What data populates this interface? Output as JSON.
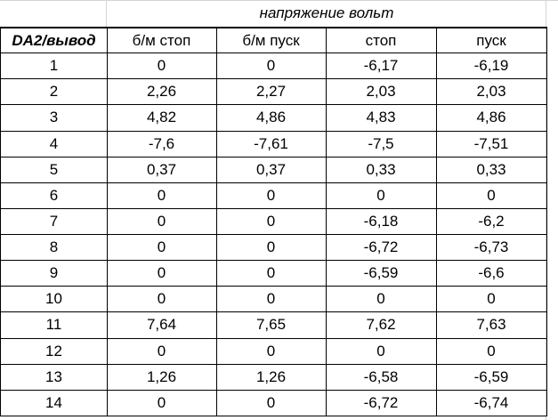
{
  "header": {
    "title": "напряжение вольт"
  },
  "table": {
    "columns": [
      "DA2/вывод",
      "б/м стоп",
      "б/м пуск",
      "стоп",
      "пуск"
    ],
    "rows": [
      [
        "1",
        "0",
        "0",
        "-6,17",
        "-6,19"
      ],
      [
        "2",
        "2,26",
        "2,27",
        "2,03",
        "2,03"
      ],
      [
        "3",
        "4,82",
        "4,86",
        "4,83",
        "4,86"
      ],
      [
        "4",
        "-7,6",
        "-7,61",
        "-7,5",
        "-7,51"
      ],
      [
        "5",
        "0,37",
        "0,37",
        "0,33",
        "0,33"
      ],
      [
        "6",
        "0",
        "0",
        "0",
        "0"
      ],
      [
        "7",
        "0",
        "0",
        "-6,18",
        "-6,2"
      ],
      [
        "8",
        "0",
        "0",
        "-6,72",
        "-6,73"
      ],
      [
        "9",
        "0",
        "0",
        "-6,59",
        "-6,6"
      ],
      [
        "10",
        "0",
        "0",
        "0",
        "0"
      ],
      [
        "11",
        "7,64",
        "7,65",
        "7,62",
        "7,63"
      ],
      [
        "12",
        "0",
        "0",
        "0",
        "0"
      ],
      [
        "13",
        "1,26",
        "1,26",
        "-6,58",
        "-6,59"
      ],
      [
        "14",
        "0",
        "0",
        "-6,72",
        "-6,74"
      ]
    ]
  }
}
